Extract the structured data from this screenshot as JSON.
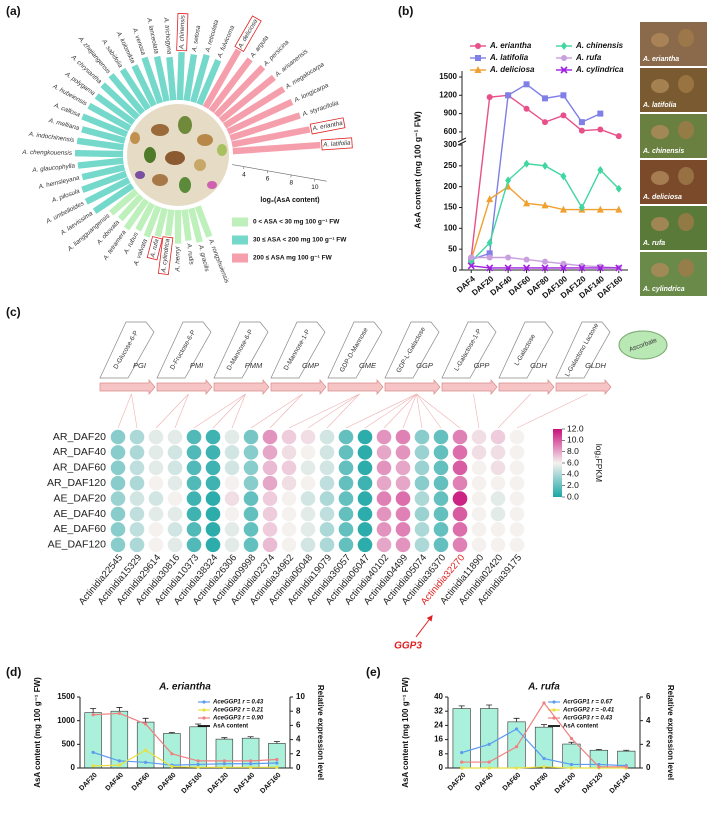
{
  "chart_data": [
    {
      "type": "radial-bar",
      "panel_label": "(a)",
      "categories": [
        "A. latifolia",
        "A. eriantha",
        "A. styracifolia",
        "A. longicarpa",
        "A. megalocarpa",
        "A. arisanensis",
        "A. persicina",
        "A. arguta",
        "A. deliciosa",
        "A. fulvicoma",
        "A. reticulata",
        "A. setosa",
        "A. chinensis",
        "A. trichogyna",
        "A. lanceolata",
        "A. venosa",
        "A. kolomikta",
        "A. sabiifolia",
        "A. zhejiangensis",
        "A. chrysantha",
        "A. polygama",
        "A. hubeiensis",
        "A. callosa",
        "A. melliana",
        "A. indochinensis",
        "A. chengkouensis",
        "A. glaucophylla",
        "A. hemsleyana",
        "A. pilosula",
        "A. umbelloides",
        "A. laevissima",
        "A. liangguangensis",
        "A. obovata",
        "A. tetramera",
        "A. rubus",
        "A. valvata",
        "A. rufa",
        "A. cylindrica",
        "A. henryi",
        "A. rudis",
        "A. gracilis",
        "A. rongshuiensis"
      ],
      "values": [
        10.3,
        9.6,
        9.1,
        8.9,
        8.8,
        8.7,
        8.6,
        8.4,
        8.5,
        7.0,
        7.1,
        6.9,
        7.0,
        6.6,
        6.8,
        7.0,
        6.7,
        6.9,
        7.1,
        7.0,
        6.8,
        6.9,
        7.0,
        6.7,
        6.9,
        7.0,
        6.8,
        6.6,
        6.9,
        7.0,
        6.8,
        5.8,
        5.6,
        5.9,
        5.5,
        5.7,
        5.4,
        5.2,
        5.8,
        5.6,
        5.9,
        5.7
      ],
      "groups": [
        2,
        2,
        2,
        2,
        2,
        2,
        2,
        2,
        2,
        1,
        1,
        1,
        1,
        1,
        1,
        1,
        1,
        1,
        1,
        1,
        1,
        1,
        1,
        1,
        1,
        1,
        1,
        1,
        1,
        1,
        1,
        0,
        0,
        0,
        0,
        0,
        0,
        0,
        0,
        0,
        0,
        0
      ],
      "group_names": [
        "0 < ASA < 30 mg 100 g⁻¹ FW",
        "30 ≤ ASA < 200 mg 100 g⁻¹ FW",
        "200 ≤ ASA  mg 100 g⁻¹ FW"
      ],
      "group_colors": [
        "#bdf0bb",
        "#74d8cb",
        "#f59fac"
      ],
      "highlight": [
        0,
        1,
        8,
        12,
        36,
        37
      ],
      "highlight_color": "#e02020",
      "ylabel": "log₂(AsA content)",
      "ylim": [
        3,
        11
      ],
      "yticks": [
        4,
        6,
        8,
        10
      ]
    },
    {
      "type": "line",
      "panel_label": "(b)",
      "categories": [
        "DAF4",
        "DAF20",
        "DAF40",
        "DAF60",
        "DAF80",
        "DAF100",
        "DAF120",
        "DAF140",
        "DAF160"
      ],
      "series": [
        {
          "name": "A. eriantha",
          "color": "#e8508a",
          "marker": "circle",
          "values": [
            30,
            1170,
            1200,
            980,
            760,
            870,
            620,
            640,
            530
          ]
        },
        {
          "name": "A. latifolia",
          "color": "#7f7fe6",
          "marker": "square",
          "values": [
            25,
            40,
            1200,
            1380,
            1150,
            1200,
            760,
            900,
            null
          ]
        },
        {
          "name": "A. deliciosa",
          "color": "#f0a030",
          "marker": "triangle",
          "values": [
            25,
            170,
            200,
            160,
            155,
            145,
            145,
            145,
            145
          ]
        },
        {
          "name": "A. chinensis",
          "color": "#3fd6a0",
          "marker": "diamond",
          "values": [
            20,
            65,
            215,
            255,
            250,
            225,
            150,
            240,
            195
          ]
        },
        {
          "name": "A. rufa",
          "color": "#c8a0e0",
          "marker": "circle",
          "values": [
            30,
            30,
            30,
            25,
            20,
            15,
            10,
            8,
            5
          ]
        },
        {
          "name": "A. cylindrica",
          "color": "#a020e0",
          "marker": "x",
          "values": [
            10,
            5,
            5,
            5,
            5,
            5,
            5,
            5,
            5
          ]
        }
      ],
      "ylabel": "AsA content (mg 100 g⁻¹ FW)",
      "ylim": [
        0,
        1500
      ],
      "axis_break": [
        300,
        500
      ],
      "yticks": [
        0,
        50,
        100,
        150,
        200,
        250,
        300,
        600,
        900,
        1200,
        1500
      ],
      "photo_labels": [
        "A. eriantha",
        "A. latifolia",
        "A. chinensis",
        "A. deliciosa",
        "A. rufa",
        "A. cylindrica"
      ]
    },
    {
      "type": "heatmap",
      "panel_label": "(c)",
      "pathway": {
        "metabolites": [
          "D-Glucose-6-P",
          "D-Fructose-6-P",
          "D-Mannose-6-P",
          "D-Mannose-1-P",
          "GDP-D-Mannose",
          "GDP-L-Galactose",
          "L-Galactose-1-P",
          "L-Galactose",
          "L-Galactono Lactone",
          "Ascorbate"
        ],
        "enzymes": [
          "PGI",
          "PMI",
          "PMM",
          "GMP",
          "GME",
          "GGP",
          "GPP",
          "GDH",
          "GLDH"
        ]
      },
      "rows": [
        "AR_DAF20",
        "AR_DAF40",
        "AR_DAF60",
        "AR_DAF120",
        "AE_DAF20",
        "AE_DAF40",
        "AE_DAF60",
        "AE_DAF120"
      ],
      "columns": [
        "Actinidia22545",
        "Actinidia15329",
        "Actinidia29614",
        "Actinidia30816",
        "Actinidia10373",
        "Actinidia38324",
        "Actinidia26306",
        "Actinidia09998",
        "Actinidia02374",
        "Actinidia34962",
        "Actinidia06048",
        "Actinidia19079",
        "Actinidia36057",
        "Actinidia06047",
        "Actinidia40102",
        "Actinidia04499",
        "Actinidia05074",
        "Actinidia36370",
        "Actinidia32270",
        "Actinidia11890",
        "Actinidia02420",
        "Actinidia39175"
      ],
      "z": [
        [
          3,
          4,
          5.5,
          5.5,
          1.5,
          1,
          5.5,
          2.5,
          8.5,
          7,
          6.5,
          5,
          2,
          0.5,
          8.5,
          9,
          3,
          2,
          9,
          6.5,
          7,
          6
        ],
        [
          3,
          4,
          5.5,
          5,
          1.5,
          1,
          5,
          3,
          8,
          6.5,
          6,
          5,
          2,
          0.5,
          8,
          8.5,
          3.5,
          2,
          9.5,
          6.5,
          6.5,
          6
        ],
        [
          3,
          4.5,
          5.5,
          5,
          1.5,
          1,
          5,
          3,
          7.5,
          7,
          5.5,
          5,
          2,
          0.5,
          8.5,
          8,
          3.5,
          2,
          10,
          6,
          6.5,
          6
        ],
        [
          3,
          4,
          6,
          5.5,
          1.5,
          1,
          6,
          3,
          8,
          6.5,
          6,
          4.5,
          2,
          1,
          8,
          8,
          3,
          2,
          9,
          6,
          6,
          6
        ],
        [
          3.5,
          5,
          5,
          6,
          1,
          0.5,
          6.5,
          2,
          7,
          6,
          5,
          4,
          2,
          0.5,
          9,
          9.5,
          4,
          2,
          11.5,
          6,
          5.5,
          6
        ],
        [
          3,
          4.5,
          5.5,
          5.5,
          1,
          0.5,
          6,
          2,
          7,
          6,
          5.5,
          4.5,
          2,
          0.5,
          8.5,
          9,
          3.5,
          2,
          10,
          6,
          5.5,
          6
        ],
        [
          3,
          4.5,
          6,
          5,
          1.5,
          0.5,
          5.5,
          2,
          7,
          6,
          5.5,
          4,
          2,
          0.5,
          8.5,
          9,
          4,
          2,
          9.5,
          6,
          6,
          6
        ],
        [
          3,
          4,
          6,
          5.5,
          1.5,
          0.5,
          5.5,
          2,
          7.5,
          6,
          5,
          4,
          2,
          0.5,
          8,
          8.5,
          4,
          2,
          9,
          6,
          6,
          6
        ]
      ],
      "colorscale": [
        "#1aa7a6",
        "#f5f1ef",
        "#c8117b"
      ],
      "zlim": [
        0,
        12
      ],
      "zticks": [
        {
          "value": 0,
          "label": "0.0"
        },
        {
          "value": 2,
          "label": "2.0"
        },
        {
          "value": 4,
          "label": "4.0"
        },
        {
          "value": 6,
          "label": "6.0"
        },
        {
          "value": 8,
          "label": "8.0"
        },
        {
          "value": 10,
          "label": "10.0"
        },
        {
          "value": 12,
          "label": "12.0"
        }
      ],
      "zlabel": "log₂FPKM",
      "highlight_column": 18,
      "highlight_color": "#e02020",
      "annotation": "GGP3"
    },
    {
      "type": "bar-line",
      "panel_label": "(d)",
      "title": "A. eriantha",
      "categories": [
        "DAF20",
        "DAF40",
        "DAF60",
        "DAF80",
        "DAF100",
        "DAF120",
        "DAF140",
        "DAF160"
      ],
      "bars": {
        "name": "AsA content",
        "color": "#aaf0da",
        "values": [
          1170,
          1200,
          970,
          730,
          870,
          610,
          630,
          520
        ],
        "errors": [
          90,
          80,
          80,
          20,
          60,
          30,
          30,
          40
        ]
      },
      "series": [
        {
          "name": "AceGGP1 r = 0.43",
          "color": "#5b9bf0",
          "axis": "y2",
          "values": [
            2.2,
            1.0,
            0.8,
            0.4,
            0.5,
            0.6,
            0.6,
            0.7
          ]
        },
        {
          "name": "AceGGP2 r = 0.21",
          "color": "#e8e040",
          "axis": "y2",
          "values": [
            0.3,
            0.4,
            2.5,
            0.2,
            0.1,
            0.1,
            0.1,
            0.1
          ]
        },
        {
          "name": "AceGGP3 r = 0.90",
          "color": "#f08080",
          "axis": "y2",
          "values": [
            7.5,
            7.7,
            6.2,
            2.0,
            1.0,
            1.0,
            1.0,
            1.2
          ]
        }
      ],
      "ylabel": "AsA content (mg 100 g⁻¹ FW)",
      "y2label": "Relative expression level",
      "ylim": [
        0,
        1500
      ],
      "yticks": [
        0,
        500,
        1000,
        1500
      ],
      "y2lim": [
        0,
        10
      ],
      "y2ticks": [
        0,
        2,
        4,
        6,
        8,
        10
      ]
    },
    {
      "type": "bar-line",
      "panel_label": "(e)",
      "title": "A. rufa",
      "categories": [
        "DAF20",
        "DAF40",
        "DAF60",
        "DAF80",
        "DAF100",
        "DAF120",
        "DAF140"
      ],
      "bars": {
        "name": "AsA content",
        "color": "#aaf0da",
        "values": [
          33.5,
          33.5,
          26,
          23,
          13.5,
          10,
          9.5
        ],
        "errors": [
          1.5,
          2,
          2,
          1.5,
          1,
          0.5,
          0.5
        ]
      },
      "series": [
        {
          "name": "AcrGGP1 r = 0.67",
          "color": "#5b9bf0",
          "axis": "y2",
          "values": [
            1.3,
            2.0,
            3.3,
            0.8,
            0.3,
            0.3,
            0.2
          ]
        },
        {
          "name": "AcrGGP2 r = -0.41",
          "color": "#e8e040",
          "axis": "y2",
          "values": [
            0,
            0,
            0,
            0.1,
            0,
            0,
            0
          ]
        },
        {
          "name": "AcrGGP3 r = 0.43",
          "color": "#f08080",
          "axis": "y2",
          "values": [
            0.5,
            0.5,
            1.8,
            5.5,
            2.5,
            0.1,
            0.1
          ]
        }
      ],
      "ylabel": "AsA content (mg 100 g⁻¹ FW)",
      "y2label": "Relative expression level",
      "ylim": [
        0,
        40
      ],
      "yticks": [
        0,
        8,
        16,
        24,
        32,
        40
      ],
      "y2lim": [
        0,
        6
      ],
      "y2ticks": [
        0,
        2,
        4,
        6
      ]
    }
  ]
}
